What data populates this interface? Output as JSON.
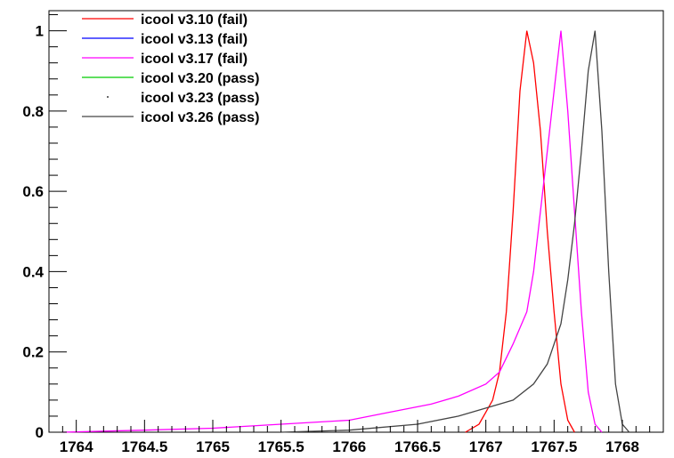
{
  "chart_data": {
    "type": "line",
    "title": "",
    "xlabel": "",
    "ylabel": "",
    "xlim": [
      1763.8,
      1768.3
    ],
    "ylim": [
      0,
      1.05
    ],
    "grid": false,
    "legend_position": "top-left",
    "x_ticks": [
      {
        "value": 1764,
        "label": "1764"
      },
      {
        "value": 1764.5,
        "label": "1764.5"
      },
      {
        "value": 1765,
        "label": "1765"
      },
      {
        "value": 1765.5,
        "label": "1765.5"
      },
      {
        "value": 1766,
        "label": "1766"
      },
      {
        "value": 1766.5,
        "label": "1766.5"
      },
      {
        "value": 1767,
        "label": "1767"
      },
      {
        "value": 1767.5,
        "label": "1767.5"
      },
      {
        "value": 1768,
        "label": "1768"
      }
    ],
    "y_ticks": [
      {
        "value": 0,
        "label": "0"
      },
      {
        "value": 0.2,
        "label": "0.2"
      },
      {
        "value": 0.4,
        "label": "0.4"
      },
      {
        "value": 0.6,
        "label": "0.6"
      },
      {
        "value": 0.8,
        "label": "0.8"
      },
      {
        "value": 1,
        "label": "1"
      }
    ],
    "series": [
      {
        "name": "icool v3.10 (fail)",
        "color": "#ff0000",
        "points": [
          [
            1766.85,
            0
          ],
          [
            1766.95,
            0.02
          ],
          [
            1767.0,
            0.05
          ],
          [
            1767.05,
            0.08
          ],
          [
            1767.1,
            0.15
          ],
          [
            1767.15,
            0.3
          ],
          [
            1767.2,
            0.55
          ],
          [
            1767.25,
            0.85
          ],
          [
            1767.3,
            1.0
          ],
          [
            1767.35,
            0.92
          ],
          [
            1767.4,
            0.75
          ],
          [
            1767.45,
            0.5
          ],
          [
            1767.5,
            0.3
          ],
          [
            1767.55,
            0.12
          ],
          [
            1767.6,
            0.03
          ],
          [
            1767.65,
            0
          ]
        ]
      },
      {
        "name": "icool v3.13 (fail)",
        "color": "#0000ff",
        "points": []
      },
      {
        "name": "icool v3.17 (fail)",
        "color": "#ff00ff",
        "points": [
          [
            1763.9,
            0
          ],
          [
            1764.5,
            0.005
          ],
          [
            1765.0,
            0.01
          ],
          [
            1765.5,
            0.02
          ],
          [
            1766.0,
            0.03
          ],
          [
            1766.3,
            0.05
          ],
          [
            1766.6,
            0.07
          ],
          [
            1766.8,
            0.09
          ],
          [
            1767.0,
            0.12
          ],
          [
            1767.1,
            0.15
          ],
          [
            1767.2,
            0.22
          ],
          [
            1767.3,
            0.3
          ],
          [
            1767.35,
            0.4
          ],
          [
            1767.4,
            0.55
          ],
          [
            1767.45,
            0.7
          ],
          [
            1767.5,
            0.85
          ],
          [
            1767.55,
            1.0
          ],
          [
            1767.6,
            0.8
          ],
          [
            1767.65,
            0.55
          ],
          [
            1767.7,
            0.3
          ],
          [
            1767.75,
            0.1
          ],
          [
            1767.8,
            0.02
          ],
          [
            1767.85,
            0
          ]
        ]
      },
      {
        "name": "icool v3.20 (pass)",
        "color": "#00cc00",
        "points": []
      },
      {
        "name": "icool v3.23 (pass)",
        "color": "#000000",
        "points": []
      },
      {
        "name": "icool v3.26 (pass)",
        "color": "#444444",
        "points": [
          [
            1765.5,
            0
          ],
          [
            1766.0,
            0.005
          ],
          [
            1766.5,
            0.02
          ],
          [
            1766.8,
            0.04
          ],
          [
            1767.0,
            0.06
          ],
          [
            1767.2,
            0.08
          ],
          [
            1767.35,
            0.12
          ],
          [
            1767.45,
            0.17
          ],
          [
            1767.55,
            0.27
          ],
          [
            1767.6,
            0.38
          ],
          [
            1767.65,
            0.52
          ],
          [
            1767.7,
            0.7
          ],
          [
            1767.75,
            0.9
          ],
          [
            1767.8,
            1.0
          ],
          [
            1767.85,
            0.75
          ],
          [
            1767.9,
            0.4
          ],
          [
            1767.95,
            0.12
          ],
          [
            1768.0,
            0.02
          ],
          [
            1768.05,
            0
          ]
        ]
      }
    ]
  }
}
